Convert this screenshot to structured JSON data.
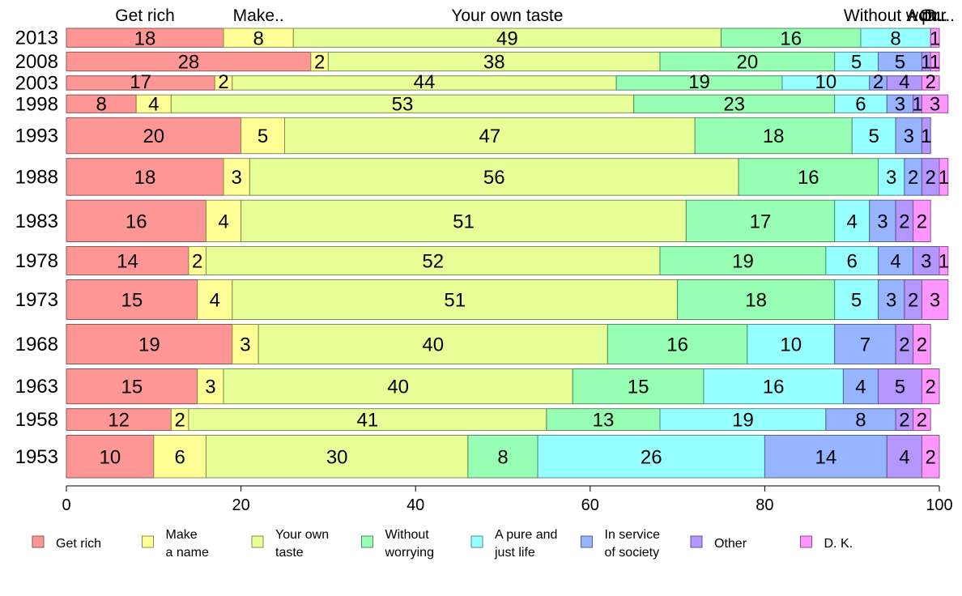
{
  "chart_data": {
    "type": "bar",
    "orientation": "horizontal",
    "stacked": true,
    "xlim": [
      0,
      100
    ],
    "x_ticks": [
      "0",
      "20",
      "40",
      "60",
      "80",
      "100"
    ],
    "grid": false,
    "legend_position": "bottom",
    "categories": [
      "2013",
      "2008",
      "2003",
      "1998",
      "1993",
      "1988",
      "1983",
      "1978",
      "1973",
      "1968",
      "1963",
      "1958",
      "1953"
    ],
    "bar_thickness_weights": [
      1.0,
      1.0,
      0.75,
      0.95,
      1.9,
      1.95,
      2.2,
      1.5,
      2.1,
      2.1,
      1.85,
      1.15,
      2.25
    ],
    "top_labels": [
      "Get rich",
      "Make..",
      "Your own taste",
      "",
      "Without worr..",
      "A pur..",
      "O..",
      "D.."
    ],
    "series": [
      {
        "name": "Get rich",
        "legend": [
          "Get rich"
        ],
        "color": "#ff9696",
        "values": [
          18,
          28,
          17,
          8,
          20,
          18,
          16,
          14,
          15,
          19,
          15,
          12,
          10
        ]
      },
      {
        "name": "Make a name",
        "legend": [
          "Make",
          "a name"
        ],
        "color": "#ffff96",
        "values": [
          8,
          2,
          2,
          4,
          5,
          3,
          4,
          2,
          4,
          3,
          3,
          2,
          6
        ]
      },
      {
        "name": "Your own taste",
        "legend": [
          "Your own",
          "taste"
        ],
        "color": "#e6ff96",
        "values": [
          49,
          38,
          44,
          53,
          47,
          56,
          51,
          52,
          51,
          40,
          40,
          41,
          30
        ]
      },
      {
        "name": "Without worrying",
        "legend": [
          "Without",
          "worrying"
        ],
        "color": "#96ffb4",
        "values": [
          16,
          20,
          19,
          23,
          18,
          16,
          17,
          19,
          18,
          16,
          15,
          13,
          8
        ]
      },
      {
        "name": "A pure and just life",
        "legend": [
          "A pure and",
          "just life"
        ],
        "color": "#96ffff",
        "values": [
          8,
          5,
          10,
          6,
          5,
          3,
          4,
          6,
          5,
          10,
          16,
          19,
          26
        ]
      },
      {
        "name": "In service of society",
        "legend": [
          "In service",
          "of society"
        ],
        "color": "#96b4ff",
        "values": [
          0,
          5,
          2,
          3,
          3,
          2,
          3,
          4,
          3,
          7,
          4,
          8,
          14
        ]
      },
      {
        "name": "Other",
        "legend": [
          "Other"
        ],
        "color": "#b496ff",
        "values": [
          0,
          1,
          4,
          1,
          1,
          2,
          2,
          3,
          2,
          2,
          5,
          2,
          4
        ]
      },
      {
        "name": "D. K.",
        "legend": [
          "D. K."
        ],
        "color": "#ff96ff",
        "values": [
          1,
          1,
          2,
          3,
          0,
          1,
          2,
          1,
          3,
          2,
          2,
          2,
          2
        ]
      }
    ]
  }
}
